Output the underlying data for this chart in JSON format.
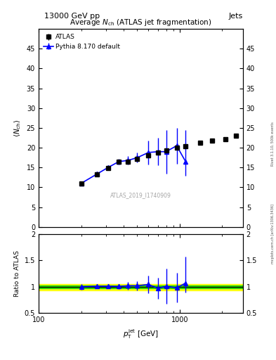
{
  "title_left": "13000 GeV pp",
  "title_right": "Jets",
  "right_label": "Rivet 3.1.10, 500k events",
  "arxiv_label": "mcplots.cern.ch [arXiv:1306.3436]",
  "watermark": "ATLAS_2019_I1740909",
  "ylim_main": [
    0,
    50
  ],
  "ylim_ratio": [
    0.5,
    2.0
  ],
  "xlim": [
    100,
    2800
  ],
  "atlas_x": [
    200,
    260,
    310,
    370,
    430,
    500,
    600,
    700,
    800,
    950,
    1100,
    1400,
    1700,
    2100,
    2500
  ],
  "atlas_y": [
    11.0,
    13.3,
    14.8,
    16.4,
    16.5,
    17.2,
    18.0,
    18.8,
    19.3,
    20.0,
    20.3,
    21.2,
    21.7,
    22.2,
    23.0
  ],
  "atlas_yerr": [
    0.3,
    0.3,
    0.3,
    0.3,
    0.3,
    0.3,
    0.3,
    0.3,
    0.3,
    0.3,
    0.3,
    0.3,
    0.3,
    0.3,
    0.3
  ],
  "pythia_x": [
    200,
    260,
    310,
    370,
    430,
    500,
    600,
    700,
    800,
    950,
    1100
  ],
  "pythia_y": [
    11.0,
    13.4,
    15.0,
    16.5,
    16.8,
    17.5,
    18.8,
    19.0,
    19.0,
    20.5,
    16.5
  ],
  "pythia_yerr_lo": [
    0.5,
    0.5,
    0.5,
    0.7,
    1.0,
    1.2,
    3.0,
    3.5,
    5.5,
    4.5,
    3.5
  ],
  "pythia_yerr_hi": [
    0.5,
    0.5,
    0.5,
    0.7,
    1.0,
    1.2,
    3.0,
    3.5,
    5.5,
    4.5,
    8.0
  ],
  "ratio_pythia_x": [
    200,
    260,
    310,
    370,
    430,
    500,
    600,
    700,
    800,
    950,
    1100
  ],
  "ratio_pythia_y": [
    1.0,
    1.01,
    1.01,
    1.005,
    1.02,
    1.02,
    1.045,
    0.97,
    1.01,
    0.98,
    1.07
  ],
  "ratio_pythia_yerr_lo": [
    0.05,
    0.04,
    0.04,
    0.05,
    0.07,
    0.09,
    0.17,
    0.2,
    0.33,
    0.28,
    0.18
  ],
  "ratio_pythia_yerr_hi": [
    0.05,
    0.04,
    0.04,
    0.05,
    0.07,
    0.09,
    0.17,
    0.2,
    0.33,
    0.28,
    0.5
  ],
  "band_yellow": [
    0.93,
    1.05
  ],
  "band_green": [
    0.97,
    1.02
  ],
  "color_atlas": "#000000",
  "color_pythia": "#0000ff",
  "color_band_yellow": "#ffff00",
  "color_band_green": "#00cc00"
}
